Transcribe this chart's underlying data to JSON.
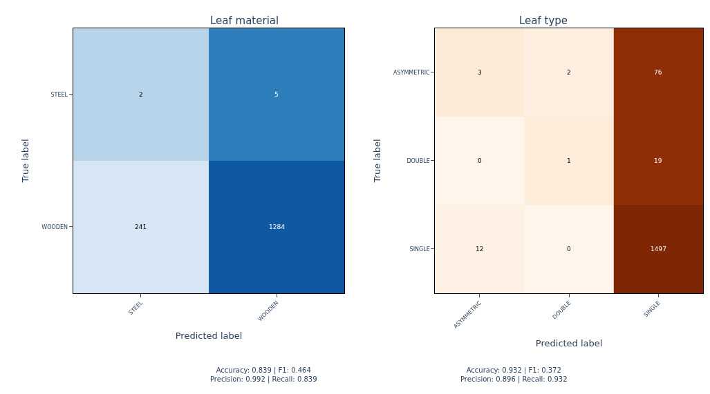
{
  "chart_data": [
    {
      "type": "heatmap",
      "title": "Leaf material",
      "xlabel": "Predicted label",
      "ylabel": "True label",
      "categories": [
        "STEEL",
        "WOODEN"
      ],
      "y_categories": [
        "STEEL",
        "WOODEN"
      ],
      "cells": [
        [
          2,
          5
        ],
        [
          241,
          1284
        ]
      ],
      "colors": [
        [
          "#b7d4ea",
          "#2e7ebc"
        ],
        [
          "#d6e6f4",
          "#0f59a3"
        ]
      ],
      "data_labels": true,
      "annotations": [
        "Accuracy: 0.839 | F1: 0.464\nPrecision: 0.992 | Recall: 0.839"
      ]
    },
    {
      "type": "heatmap",
      "title": "Leaf type",
      "xlabel": "Predicted label",
      "ylabel": "True label",
      "categories": [
        "ASYMMETRIC",
        "DOUBLE",
        "SINGLE"
      ],
      "y_categories": [
        "ASYMMETRIC",
        "DOUBLE",
        "SINGLE"
      ],
      "cells": [
        [
          3,
          2,
          76
        ],
        [
          0,
          1,
          19
        ],
        [
          12,
          0,
          1497
        ]
      ],
      "colors": [
        [
          "#fdebd8",
          "#fdeee0",
          "#8f2d04"
        ],
        [
          "#fff5eb",
          "#fdecd9",
          "#8f2d04"
        ],
        [
          "#fff1e3",
          "#fff5eb",
          "#7f2704"
        ]
      ],
      "data_labels": true,
      "annotations": [
        "Accuracy: 0.932 | F1: 0.372\nPrecision: 0.896 | Recall: 0.932"
      ]
    }
  ]
}
